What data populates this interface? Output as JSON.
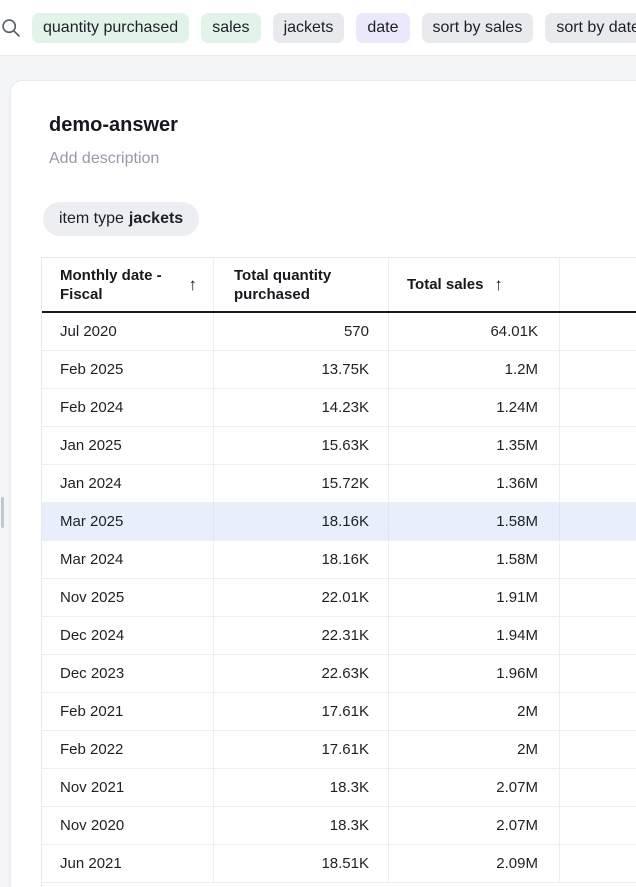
{
  "colors": {
    "chip_mint": "#e2f4ea",
    "chip_gray": "#e9eaee",
    "chip_purple": "#eae8fa",
    "row_highlight": "#e8eefb"
  },
  "topbar": {
    "search_icon": "magnifier-icon",
    "chips": [
      {
        "label": "quantity purchased",
        "color": "mint"
      },
      {
        "label": "sales",
        "color": "mint"
      },
      {
        "label": "jackets",
        "color": "gray"
      },
      {
        "label": "date",
        "color": "purple"
      },
      {
        "label": "sort by sales",
        "color": "gray"
      },
      {
        "label": "sort by date",
        "color": "gray"
      }
    ]
  },
  "card": {
    "title": "demo-answer",
    "description_placeholder": "Add description",
    "filter_pill": {
      "prefix": "item type",
      "value": "jackets"
    }
  },
  "table": {
    "columns": [
      {
        "label": "Monthly date - Fiscal",
        "sorted": true,
        "sort_icon": "↑",
        "align": "left"
      },
      {
        "label": "Total quantity purchased",
        "sorted": false,
        "sort_icon": "",
        "align": "right"
      },
      {
        "label": "Total sales",
        "sorted": true,
        "sort_icon": "↑",
        "align": "right"
      }
    ],
    "rows": [
      [
        "Jul 2020",
        "570",
        "64.01K"
      ],
      [
        "Feb 2025",
        "13.75K",
        "1.2M"
      ],
      [
        "Feb 2024",
        "14.23K",
        "1.24M"
      ],
      [
        "Jan 2025",
        "15.63K",
        "1.35M"
      ],
      [
        "Jan 2024",
        "15.72K",
        "1.36M"
      ],
      [
        "Mar 2025",
        "18.16K",
        "1.58M"
      ],
      [
        "Mar 2024",
        "18.16K",
        "1.58M"
      ],
      [
        "Nov 2025",
        "22.01K",
        "1.91M"
      ],
      [
        "Dec 2024",
        "22.31K",
        "1.94M"
      ],
      [
        "Dec 2023",
        "22.63K",
        "1.96M"
      ],
      [
        "Feb 2021",
        "17.61K",
        "2M"
      ],
      [
        "Feb 2022",
        "17.61K",
        "2M"
      ],
      [
        "Nov 2021",
        "18.3K",
        "2.07M"
      ],
      [
        "Nov 2020",
        "18.3K",
        "2.07M"
      ],
      [
        "Jun 2021",
        "18.51K",
        "2.09M"
      ]
    ],
    "highlighted_row_index": 5
  }
}
